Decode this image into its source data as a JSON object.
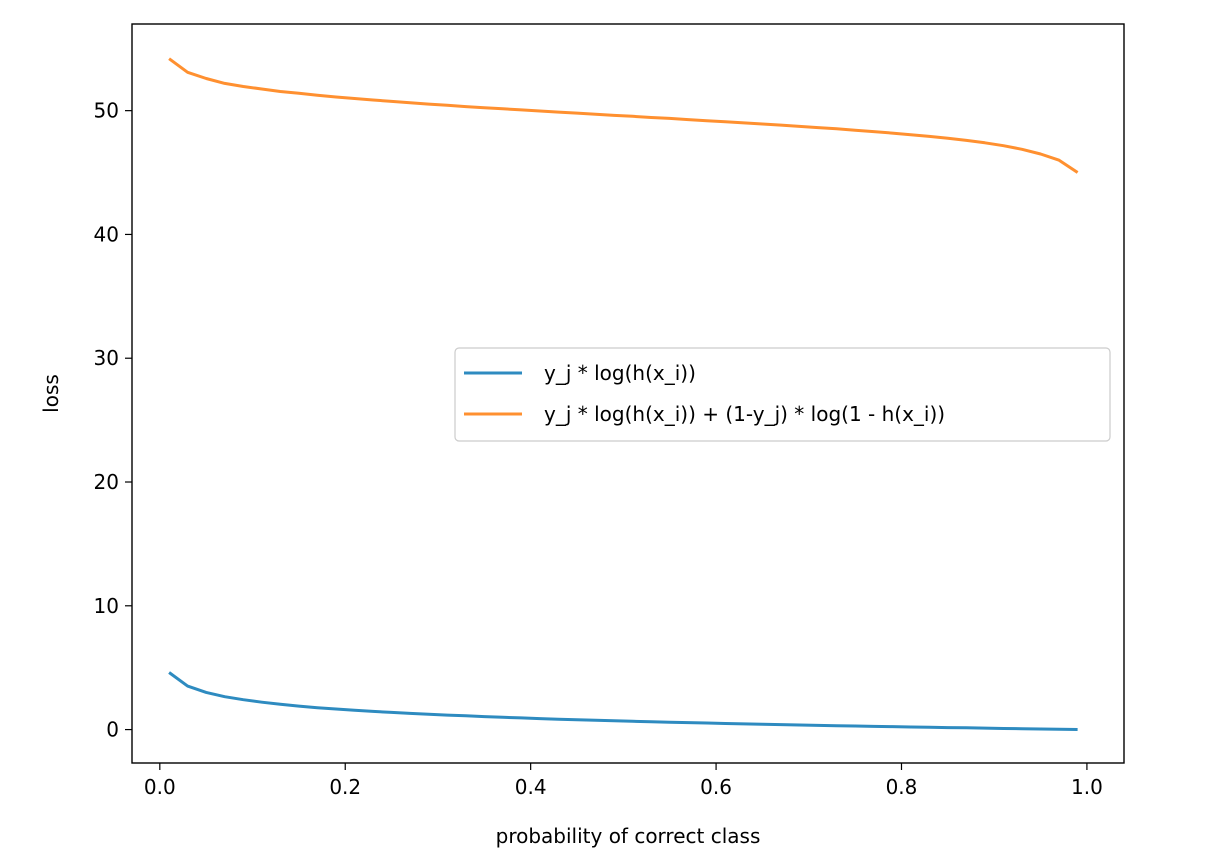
{
  "chart_data": {
    "type": "line",
    "title": "",
    "xlabel": "probability of correct class",
    "ylabel": "loss",
    "xlim": [
      -0.03,
      1.04
    ],
    "ylim": [
      -2.7,
      57.0
    ],
    "xticks": [
      0.0,
      0.2,
      0.4,
      0.6,
      0.8,
      1.0
    ],
    "xtick_labels": [
      "0.0",
      "0.2",
      "0.4",
      "0.6",
      "0.8",
      "1.0"
    ],
    "yticks": [
      0,
      10,
      20,
      30,
      40,
      50
    ],
    "ytick_labels": [
      "0",
      "10",
      "20",
      "30",
      "40",
      "50"
    ],
    "grid": false,
    "legend_position": "center-right",
    "x": [
      0.01,
      0.03,
      0.05,
      0.07,
      0.09,
      0.11,
      0.13,
      0.15,
      0.17,
      0.19,
      0.21,
      0.23,
      0.25,
      0.27,
      0.29,
      0.31,
      0.33,
      0.35,
      0.37,
      0.39,
      0.41,
      0.43,
      0.45,
      0.47,
      0.49,
      0.51,
      0.53,
      0.55,
      0.57,
      0.59,
      0.61,
      0.63,
      0.65,
      0.67,
      0.69,
      0.71,
      0.73,
      0.75,
      0.77,
      0.79,
      0.81,
      0.83,
      0.85,
      0.87,
      0.89,
      0.91,
      0.93,
      0.95,
      0.97,
      0.99
    ],
    "series": [
      {
        "name": "y_j * log(h(x_i))",
        "color": "#2e8bc0",
        "values": [
          4.61,
          3.51,
          3.0,
          2.66,
          2.41,
          2.21,
          2.04,
          1.9,
          1.77,
          1.66,
          1.56,
          1.47,
          1.39,
          1.31,
          1.24,
          1.17,
          1.11,
          1.05,
          0.99,
          0.94,
          0.89,
          0.84,
          0.8,
          0.76,
          0.71,
          0.67,
          0.63,
          0.6,
          0.56,
          0.53,
          0.49,
          0.46,
          0.43,
          0.4,
          0.37,
          0.34,
          0.31,
          0.29,
          0.26,
          0.24,
          0.21,
          0.19,
          0.16,
          0.14,
          0.12,
          0.09,
          0.07,
          0.05,
          0.03,
          0.01
        ]
      },
      {
        "name": "y_j * log(h(x_i)) + (1-y_j) * log(1 - h(x_i))",
        "color": "#ff9030",
        "values": [
          54.2,
          53.1,
          52.6,
          52.2,
          51.95,
          51.75,
          51.55,
          51.4,
          51.25,
          51.1,
          50.98,
          50.86,
          50.75,
          50.64,
          50.53,
          50.43,
          50.33,
          50.24,
          50.15,
          50.06,
          49.97,
          49.88,
          49.8,
          49.71,
          49.62,
          49.54,
          49.45,
          49.37,
          49.28,
          49.19,
          49.1,
          49.01,
          48.92,
          48.83,
          48.73,
          48.63,
          48.53,
          48.42,
          48.31,
          48.19,
          48.06,
          47.92,
          47.77,
          47.6,
          47.4,
          47.17,
          46.88,
          46.5,
          46.0,
          45.0
        ]
      }
    ]
  }
}
